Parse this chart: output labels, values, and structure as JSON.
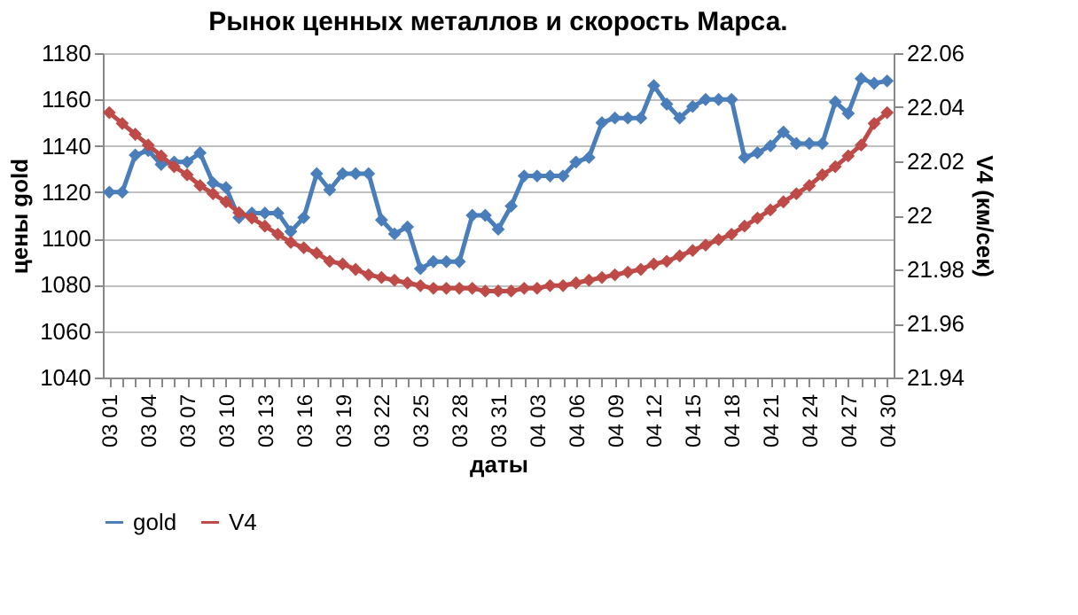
{
  "chart_data": {
    "type": "line",
    "title": "Рынок ценных металлов и скорость Марса.",
    "xlabel": "даты",
    "ylabel": "цены gold",
    "y2label": "V4 (км/сек)",
    "categories": [
      "03 01",
      null,
      null,
      "03 04",
      null,
      null,
      "03 07",
      null,
      null,
      "03 10",
      null,
      null,
      "03 13",
      null,
      null,
      "03 16",
      null,
      null,
      "03 19",
      null,
      null,
      "03 22",
      null,
      null,
      "03 25",
      null,
      null,
      "03 28",
      null,
      null,
      "03 31",
      null,
      null,
      "04 03",
      null,
      null,
      "04 06",
      null,
      null,
      "04 09",
      null,
      null,
      "04 12",
      null,
      null,
      "04 15",
      null,
      null,
      "04 18",
      null,
      null,
      "04 21",
      null,
      null,
      "04 24",
      null,
      null,
      "04 27",
      null,
      null,
      "04 30"
    ],
    "series": [
      {
        "name": "gold",
        "color": "#4a7ebb",
        "values": [
          1120,
          1120,
          1136,
          1138,
          1132,
          1133,
          1133,
          1137,
          1124,
          1122,
          1109,
          1111,
          1111,
          1111,
          1103,
          1109,
          1128,
          1121,
          1128,
          1128,
          1128,
          1108,
          1102,
          1105,
          1087,
          1090,
          1090,
          1090,
          1110,
          1110,
          1104,
          1114,
          1127,
          1127,
          1127,
          1127,
          1133,
          1135,
          1150,
          1152,
          1152,
          1152,
          1166,
          1158,
          1152,
          1157,
          1160,
          1160,
          1160,
          1135,
          1137,
          1140,
          1146,
          1141,
          1141,
          1141,
          1159,
          1154,
          1169,
          1167,
          1168
        ]
      },
      {
        "name": "V4",
        "color": "#be4b48",
        "axis": "y2",
        "values": [
          22.038,
          22.034,
          22.03,
          22.026,
          22.022,
          22.018,
          22.015,
          22.011,
          22.008,
          22.005,
          22.001,
          21.999,
          21.996,
          21.993,
          21.99,
          21.988,
          21.986,
          21.983,
          21.982,
          21.98,
          21.978,
          21.977,
          21.976,
          21.975,
          21.974,
          21.973,
          21.973,
          21.973,
          21.973,
          21.972,
          21.972,
          21.972,
          21.973,
          21.973,
          21.974,
          21.974,
          21.975,
          21.976,
          21.977,
          21.978,
          21.979,
          21.98,
          21.982,
          21.983,
          21.985,
          21.987,
          21.989,
          21.991,
          21.993,
          21.996,
          21.999,
          22.002,
          22.005,
          22.008,
          22.011,
          22.015,
          22.018,
          22.022,
          22.026,
          22.034,
          22.038
        ]
      }
    ],
    "ylim": [
      1040,
      1180
    ],
    "yticks": [
      1040,
      1060,
      1080,
      1100,
      1120,
      1140,
      1160,
      1180
    ],
    "y2lim": [
      21.94,
      22.06
    ],
    "y2ticks": [
      21.94,
      21.96,
      21.98,
      22,
      22.02,
      22.04,
      22.06
    ],
    "grid": "y",
    "legend": "bottom",
    "marker": "diamond"
  }
}
